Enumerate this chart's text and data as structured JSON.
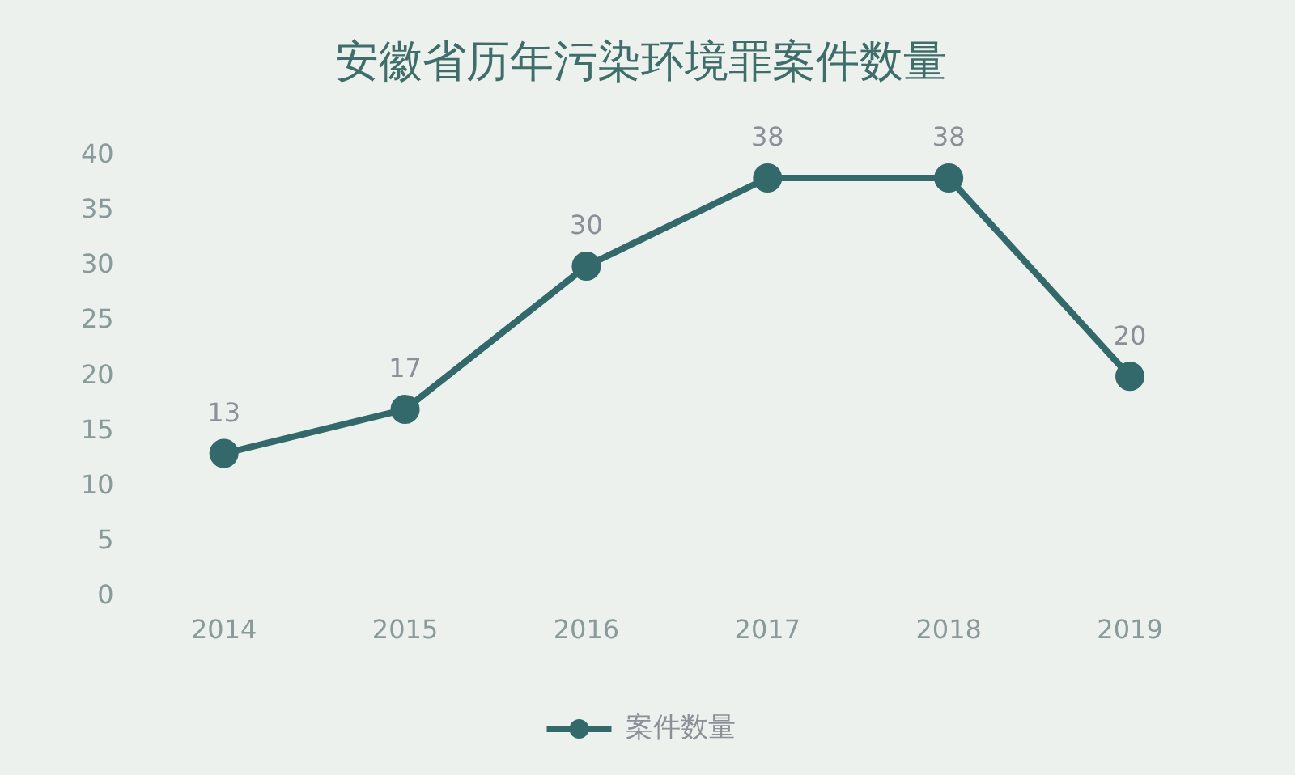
{
  "chart_data": {
    "type": "line",
    "title": "安徽省历年污染环境罪案件数量",
    "categories": [
      "2014",
      "2015",
      "2016",
      "2017",
      "2018",
      "2019"
    ],
    "series": [
      {
        "name": "案件数量",
        "color": "#33696a",
        "values": [
          13,
          17,
          30,
          38,
          38,
          20
        ]
      }
    ],
    "ylim": [
      0,
      40
    ],
    "yticks": [
      0,
      5,
      10,
      15,
      20,
      25,
      30,
      35,
      40
    ],
    "grid": false,
    "legend": "bottom",
    "marker": "circle",
    "line_style": "solid",
    "data_labels": true
  }
}
